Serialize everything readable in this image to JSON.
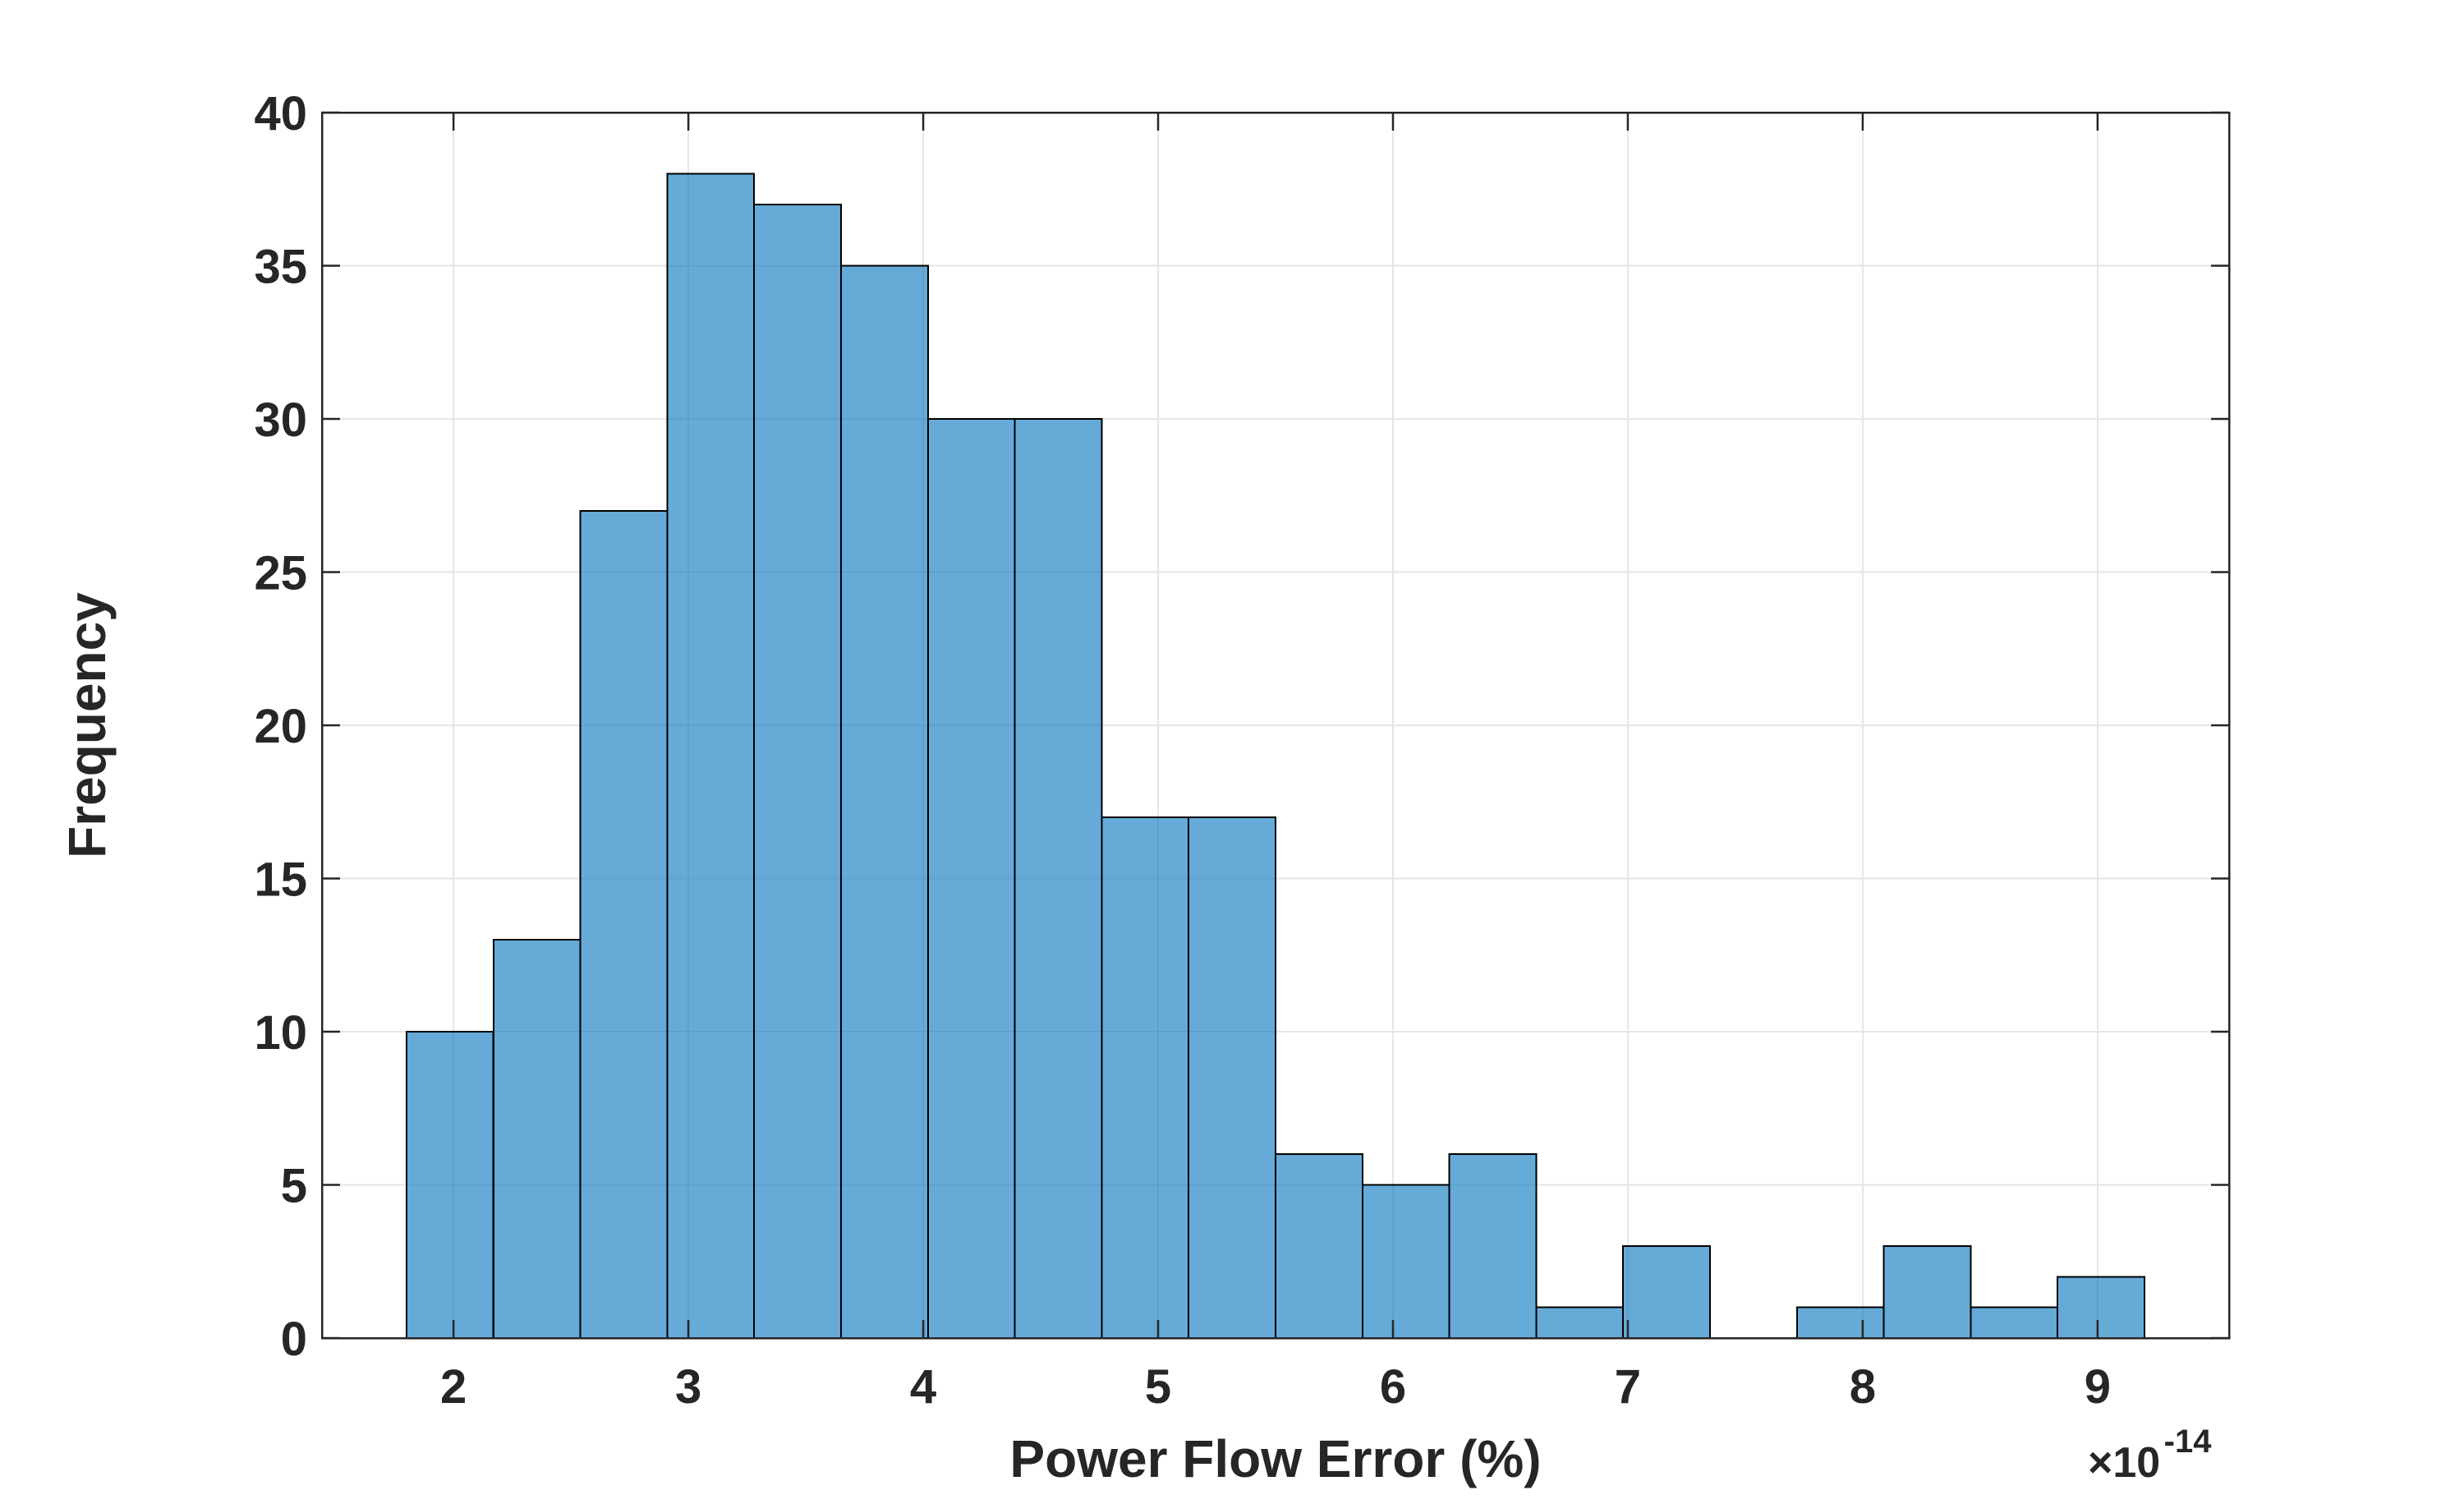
{
  "figure": {
    "background_color": "#ffffff",
    "bar_face_color": "#0072bd",
    "bar_face_opacity": 0.6,
    "bar_edge_color": "#000000",
    "grid_color": "#e6e6e6",
    "axis_box_color": "#262626",
    "tick_color": "#262626",
    "text_color": "#262626"
  },
  "chart_data": {
    "type": "bar",
    "subtype": "histogram",
    "title": "",
    "xlabel": "Power Flow Error (%)",
    "ylabel": "Frequency",
    "x_axis_multiplier_label": "×10",
    "x_axis_multiplier_exponent": "-14",
    "x_axis_multiplier_text": "×10⁻¹⁴",
    "bins": {
      "start": 1.8,
      "width": 0.37,
      "counts": [
        10,
        13,
        27,
        38,
        37,
        35,
        30,
        30,
        17,
        17,
        6,
        5,
        6,
        1,
        3,
        0,
        1,
        3,
        1,
        2
      ]
    },
    "xlim": [
      1.44,
      9.56
    ],
    "ylim": [
      0,
      40
    ],
    "x_ticks": [
      2,
      3,
      4,
      5,
      6,
      7,
      8,
      9
    ],
    "y_ticks": [
      0,
      5,
      10,
      15,
      20,
      25,
      30,
      35,
      40
    ],
    "grid": true,
    "legend_position": "none"
  }
}
